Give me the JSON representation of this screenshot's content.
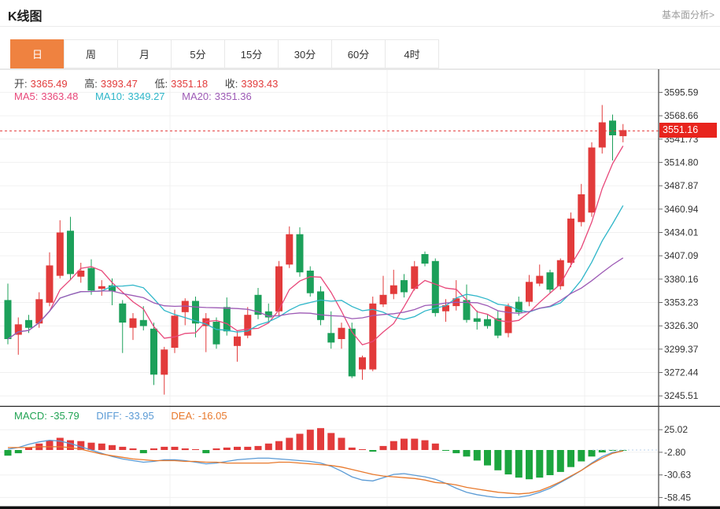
{
  "header": {
    "title": "K线图",
    "analysis_link": "基本面分析>"
  },
  "tabs": {
    "items": [
      "日",
      "周",
      "月",
      "5分",
      "15分",
      "30分",
      "60分",
      "4时"
    ],
    "active_index": 0
  },
  "ohlc_legend": {
    "open_label": "开:",
    "open": "3365.49",
    "high_label": "高:",
    "high": "3393.47",
    "low_label": "低:",
    "low": "3351.18",
    "close_label": "收:",
    "close": "3393.43"
  },
  "ma_legend": {
    "ma5_label": "MA5:",
    "ma5": "3363.48",
    "ma10_label": "MA10:",
    "ma10": "3349.27",
    "ma20_label": "MA20:",
    "ma20": "3351.36"
  },
  "macd_legend": {
    "macd_label": "MACD:",
    "macd": "-35.79",
    "diff_label": "DIFF:",
    "diff": "-33.95",
    "dea_label": "DEA:",
    "dea": "-16.05"
  },
  "price_marker": {
    "value": "3551.16",
    "price": 3551.16
  },
  "colors": {
    "up_red": "#e23b3b",
    "down_green": "#1ca05a",
    "macd_red": "#e23b3b",
    "macd_green": "#1ca53e",
    "ma5": "#e8487a",
    "ma10": "#2eb6c9",
    "ma20": "#9d5ab5",
    "diff_blue": "#5b9bd5",
    "dea_orange": "#e8792c",
    "accent_tab": "#ef8240",
    "badge_bg": "#e8241d",
    "price_line": "#e23b3b",
    "grid": "#f0f0f0",
    "macd_text_green": "#21a353",
    "legend_value_red": "#e23b3b"
  },
  "chart_data": {
    "type": "candlestick+macd",
    "main": {
      "yticks": [
        3595.59,
        3568.66,
        3541.73,
        3514.8,
        3487.87,
        3460.94,
        3434.01,
        3407.09,
        3380.16,
        3353.23,
        3326.3,
        3299.37,
        3272.44,
        3245.51
      ],
      "ylim": [
        3245.51,
        3595.59
      ],
      "grid": true,
      "ma_periods": [
        5,
        10,
        20
      ],
      "candles_format": [
        "open",
        "high",
        "low",
        "close"
      ],
      "candles": [
        [
          3356,
          3375,
          3305,
          3311
        ],
        [
          3316,
          3336,
          3293,
          3328
        ],
        [
          3333,
          3339,
          3318,
          3324
        ],
        [
          3329,
          3365,
          3324,
          3357
        ],
        [
          3353,
          3411,
          3349,
          3396
        ],
        [
          3384,
          3448,
          3381,
          3434
        ],
        [
          3436,
          3452,
          3379,
          3386
        ],
        [
          3383,
          3399,
          3376,
          3390
        ],
        [
          3393,
          3403,
          3362,
          3367
        ],
        [
          3369,
          3379,
          3361,
          3372
        ],
        [
          3373,
          3381,
          3350,
          3366
        ],
        [
          3352,
          3356,
          3295,
          3330
        ],
        [
          3324,
          3341,
          3310,
          3335
        ],
        [
          3333,
          3349,
          3321,
          3326
        ],
        [
          3323,
          3330,
          3258,
          3270
        ],
        [
          3270,
          3302,
          3247,
          3299
        ],
        [
          3301,
          3345,
          3295,
          3338
        ],
        [
          3342,
          3358,
          3327,
          3355
        ],
        [
          3355,
          3360,
          3313,
          3329
        ],
        [
          3326,
          3341,
          3296,
          3335
        ],
        [
          3331,
          3336,
          3300,
          3305
        ],
        [
          3348,
          3359,
          3315,
          3320
        ],
        [
          3303,
          3320,
          3285,
          3314
        ],
        [
          3315,
          3348,
          3312,
          3339
        ],
        [
          3362,
          3370,
          3334,
          3339
        ],
        [
          3343,
          3352,
          3330,
          3336
        ],
        [
          3343,
          3401,
          3338,
          3395
        ],
        [
          3397,
          3441,
          3393,
          3432
        ],
        [
          3432,
          3440,
          3383,
          3388
        ],
        [
          3390,
          3395,
          3360,
          3364
        ],
        [
          3366,
          3372,
          3327,
          3333
        ],
        [
          3318,
          3343,
          3300,
          3307
        ],
        [
          3311,
          3330,
          3300,
          3324
        ],
        [
          3323,
          3330,
          3266,
          3268
        ],
        [
          3276,
          3292,
          3264,
          3290
        ],
        [
          3276,
          3360,
          3274,
          3352
        ],
        [
          3351,
          3384,
          3348,
          3362
        ],
        [
          3363,
          3391,
          3357,
          3373
        ],
        [
          3379,
          3386,
          3359,
          3365
        ],
        [
          3369,
          3401,
          3367,
          3395
        ],
        [
          3409,
          3412,
          3395,
          3398
        ],
        [
          3401,
          3404,
          3337,
          3341
        ],
        [
          3343,
          3357,
          3331,
          3350
        ],
        [
          3349,
          3379,
          3344,
          3358
        ],
        [
          3356,
          3374,
          3330,
          3333
        ],
        [
          3335,
          3344,
          3322,
          3331
        ],
        [
          3334,
          3339,
          3323,
          3326
        ],
        [
          3335,
          3344,
          3312,
          3315
        ],
        [
          3318,
          3352,
          3313,
          3349
        ],
        [
          3354,
          3360,
          3338,
          3342
        ],
        [
          3354,
          3385,
          3349,
          3377
        ],
        [
          3375,
          3397,
          3372,
          3384
        ],
        [
          3388,
          3391,
          3364,
          3368
        ],
        [
          3372,
          3404,
          3368,
          3402
        ],
        [
          3399,
          3457,
          3394,
          3450
        ],
        [
          3446,
          3490,
          3441,
          3478
        ],
        [
          3457,
          3538,
          3452,
          3532
        ],
        [
          3532,
          3581,
          3525,
          3561
        ],
        [
          3563,
          3570,
          3517,
          3546
        ],
        [
          3545,
          3559,
          3538,
          3552
        ]
      ]
    },
    "macd": {
      "yticks": [
        25.02,
        -2.8,
        -30.63,
        -58.45
      ],
      "ylim": [
        -58.45,
        25.02
      ],
      "hist": [
        -7,
        -4,
        3,
        8,
        12,
        15,
        12,
        11,
        9,
        8,
        6,
        4,
        2,
        -4,
        2,
        4,
        4,
        2,
        1,
        -4,
        2,
        3,
        4,
        4,
        5,
        8,
        11,
        15,
        20,
        25,
        27,
        21,
        15,
        3,
        1,
        -2,
        5,
        11,
        14,
        14,
        12,
        8,
        -1,
        -4,
        -8,
        -13,
        -19,
        -25,
        -30,
        -34,
        -36,
        -34,
        -31,
        -27,
        -21,
        -14,
        -8,
        -3,
        -1,
        -0.5
      ],
      "diff": [
        1,
        3,
        7,
        10,
        12,
        11,
        8,
        4,
        0,
        -4,
        -8,
        -11,
        -13,
        -15,
        -14,
        -12,
        -12,
        -13,
        -15,
        -17,
        -16,
        -14,
        -12,
        -11,
        -10,
        -10,
        -11,
        -12,
        -13,
        -14,
        -16,
        -20,
        -26,
        -33,
        -37,
        -38,
        -34,
        -30,
        -29,
        -31,
        -33,
        -36,
        -41,
        -47,
        -52,
        -55,
        -57,
        -58.5,
        -58.5,
        -58,
        -56,
        -52,
        -47,
        -40,
        -33,
        -25,
        -16,
        -8,
        -3,
        -1
      ],
      "dea": [
        3,
        3,
        3,
        4,
        4,
        4,
        3,
        1,
        -2,
        -5,
        -7,
        -9,
        -11,
        -12,
        -13,
        -13,
        -13,
        -14,
        -14,
        -15,
        -15,
        -16,
        -16,
        -16,
        -16,
        -16,
        -15,
        -15,
        -16,
        -17,
        -18,
        -19,
        -21,
        -24,
        -27,
        -30,
        -32,
        -33,
        -34,
        -35,
        -37,
        -40,
        -41,
        -43,
        -46,
        -48,
        -50,
        -52,
        -53,
        -54,
        -53,
        -50,
        -45,
        -39,
        -32,
        -25,
        -17,
        -10,
        -4,
        -1
      ]
    },
    "x_gridlines": [
      216,
      492,
      743
    ]
  }
}
